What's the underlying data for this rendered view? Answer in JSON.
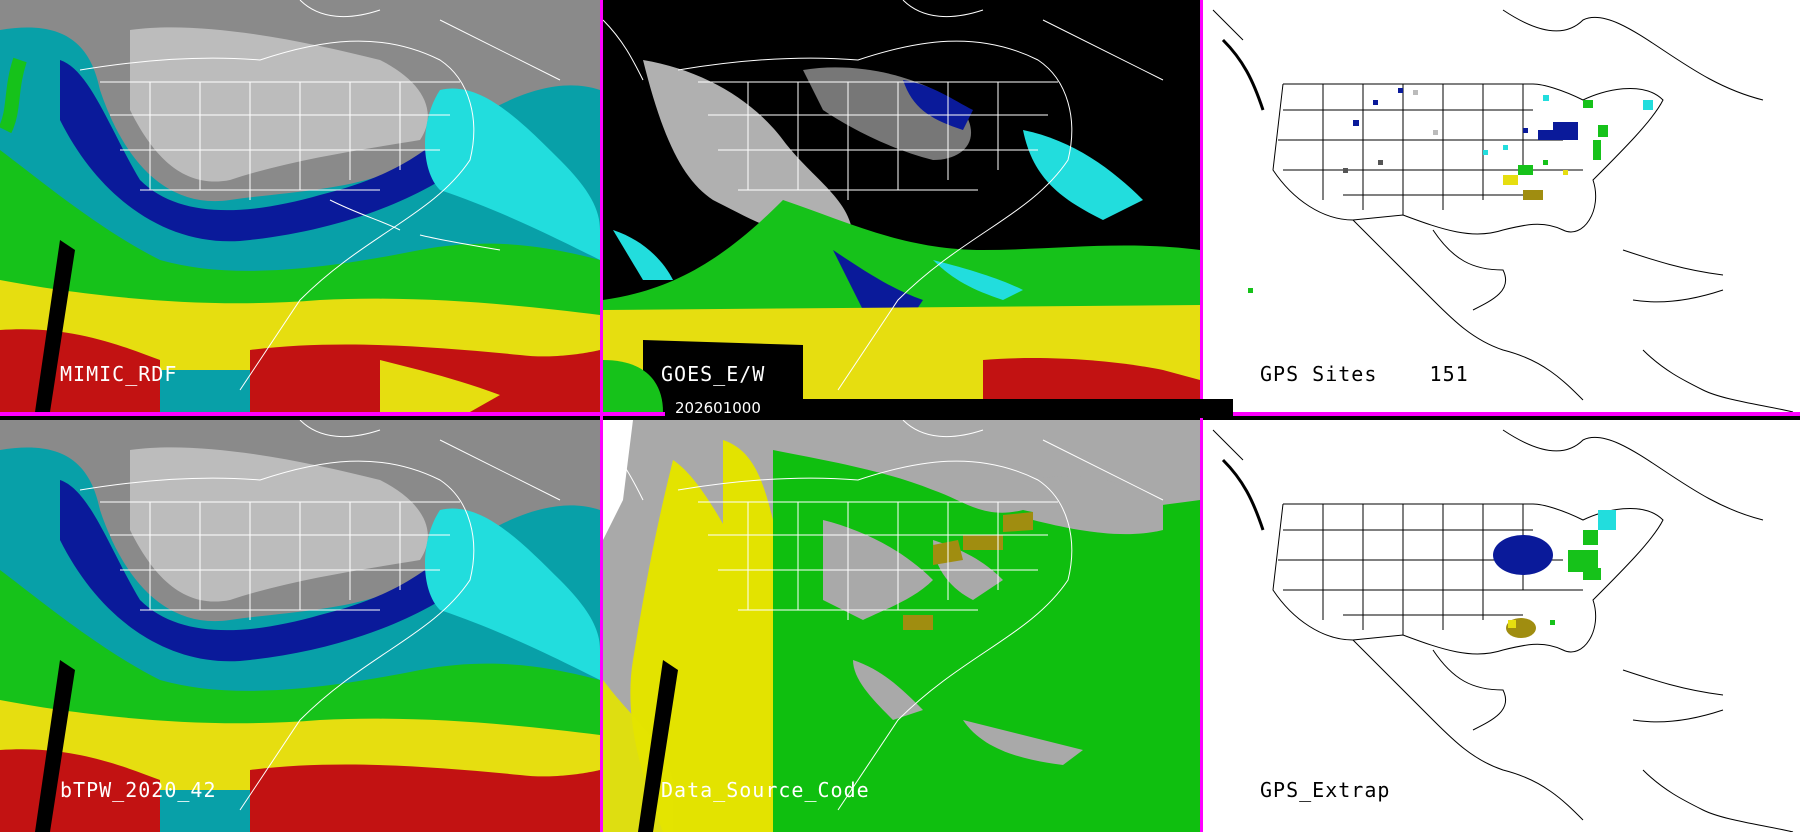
{
  "panels": [
    {
      "id": "p1",
      "label": "MIMIC_RDF",
      "style": "tpw"
    },
    {
      "id": "p2",
      "label": "GOES_E/W",
      "style": "goes"
    },
    {
      "id": "p3",
      "label": "GPS Sites    151",
      "style": "gps"
    },
    {
      "id": "p4",
      "label": "bTPW_2020_42",
      "style": "tpw"
    },
    {
      "id": "p5",
      "label": "Data_Source_Code",
      "style": "dsc"
    },
    {
      "id": "p6",
      "label": "GPS_Extrap",
      "style": "gps"
    }
  ],
  "timestamp": "202601000",
  "colors": {
    "separator": "#ff00ff",
    "coastline": "#ffffff",
    "tpw_dry": "#0a1a9a",
    "tpw_cyan": "#22dddd",
    "tpw_green": "#16c21a",
    "tpw_yellow": "#e6de10",
    "tpw_red": "#c21212",
    "dsc_gray": "#a9a9a9",
    "dsc_yellow": "#e3e300",
    "dsc_green": "#0fbf0f",
    "dsc_olive": "#a08d10"
  }
}
